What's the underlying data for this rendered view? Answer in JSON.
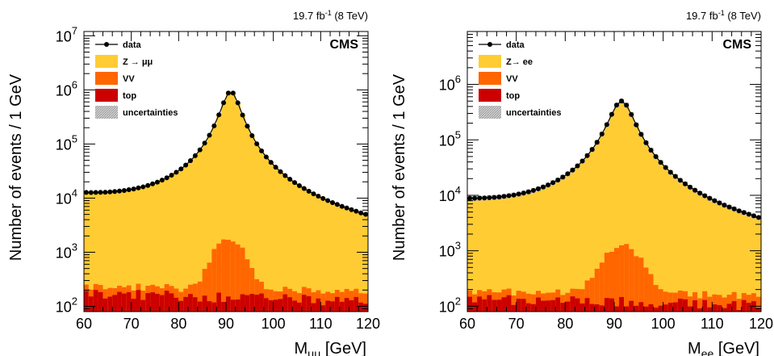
{
  "colors": {
    "z": "#ffcc33",
    "vv": "#ff6600",
    "top": "#cc0000",
    "data": "#000000",
    "uncertainty": "#b8b8b8"
  },
  "chart_data": [
    {
      "type": "area",
      "panel": "left",
      "lumi_text": "19.7 fb",
      "lumi_sup": "-1",
      "lumi_suffix": " (8 TeV)",
      "experiment": "CMS",
      "ylabel": "Number of events / 1 GeV",
      "xlabel_main": "M",
      "xlabel_sub": "μμ",
      "xlabel_unit": " [GeV]",
      "xlim": [
        60,
        120
      ],
      "ylim": [
        80,
        12000000
      ],
      "yscale": "log",
      "xticks": [
        "60",
        "70",
        "80",
        "90",
        "100",
        "110",
        "120"
      ],
      "yticks": [
        {
          "base": "10",
          "exp": "2"
        },
        {
          "base": "10",
          "exp": "3"
        },
        {
          "base": "10",
          "exp": "4"
        },
        {
          "base": "10",
          "exp": "5"
        },
        {
          "base": "10",
          "exp": "6"
        },
        {
          "base": "10",
          "exp": "7"
        }
      ],
      "legend": [
        {
          "label": "data",
          "kind": "data"
        },
        {
          "label": "Z → μμ",
          "kind": "z"
        },
        {
          "label": "VV",
          "kind": "vv"
        },
        {
          "label": "top",
          "kind": "top"
        },
        {
          "label": "uncertainties",
          "kind": "unc"
        }
      ],
      "Z": {
        "peak": 930000,
        "tail": 9000,
        "norm_at": 60,
        "min": 3300,
        "mean": 91.0,
        "width": 3.8
      },
      "VV": {
        "peak": 1700,
        "tail": 60,
        "sigma": 2.6,
        "mean": 90.5
      },
      "top": {
        "level": 175,
        "slope": -0.3
      },
      "unc_frac": 0.02
    },
    {
      "type": "area",
      "panel": "right",
      "lumi_text": "19.7 fb",
      "lumi_sup": "-1",
      "lumi_suffix": " (8 TeV)",
      "experiment": "CMS",
      "ylabel": "Number of events / 1 GeV",
      "xlabel_main": "M",
      "xlabel_sub": "ee",
      "xlabel_unit": " [GeV]",
      "xlim": [
        60,
        120
      ],
      "ylim": [
        80,
        9000000
      ],
      "yscale": "log",
      "xticks": [
        "60",
        "70",
        "80",
        "90",
        "100",
        "110",
        "120"
      ],
      "yticks": [
        {
          "base": "10",
          "exp": "2"
        },
        {
          "base": "10",
          "exp": "3"
        },
        {
          "base": "10",
          "exp": "4"
        },
        {
          "base": "10",
          "exp": "5"
        },
        {
          "base": "10",
          "exp": "6"
        }
      ],
      "legend": [
        {
          "label": "data",
          "kind": "data"
        },
        {
          "label": "Z→ ee",
          "kind": "z"
        },
        {
          "label": "VV",
          "kind": "vv"
        },
        {
          "label": "top",
          "kind": "top"
        },
        {
          "label": "uncertainties",
          "kind": "unc"
        }
      ],
      "Z": {
        "peak": 500000,
        "tail": 6000,
        "norm_at": 60,
        "min": 2500,
        "mean": 91.5,
        "width": 4.6
      },
      "VV": {
        "peak": 1100,
        "tail": 50,
        "sigma": 3.2,
        "mean": 91.5
      },
      "top": {
        "level": 140,
        "slope": -0.25
      },
      "unc_frac": 0.1
    }
  ]
}
